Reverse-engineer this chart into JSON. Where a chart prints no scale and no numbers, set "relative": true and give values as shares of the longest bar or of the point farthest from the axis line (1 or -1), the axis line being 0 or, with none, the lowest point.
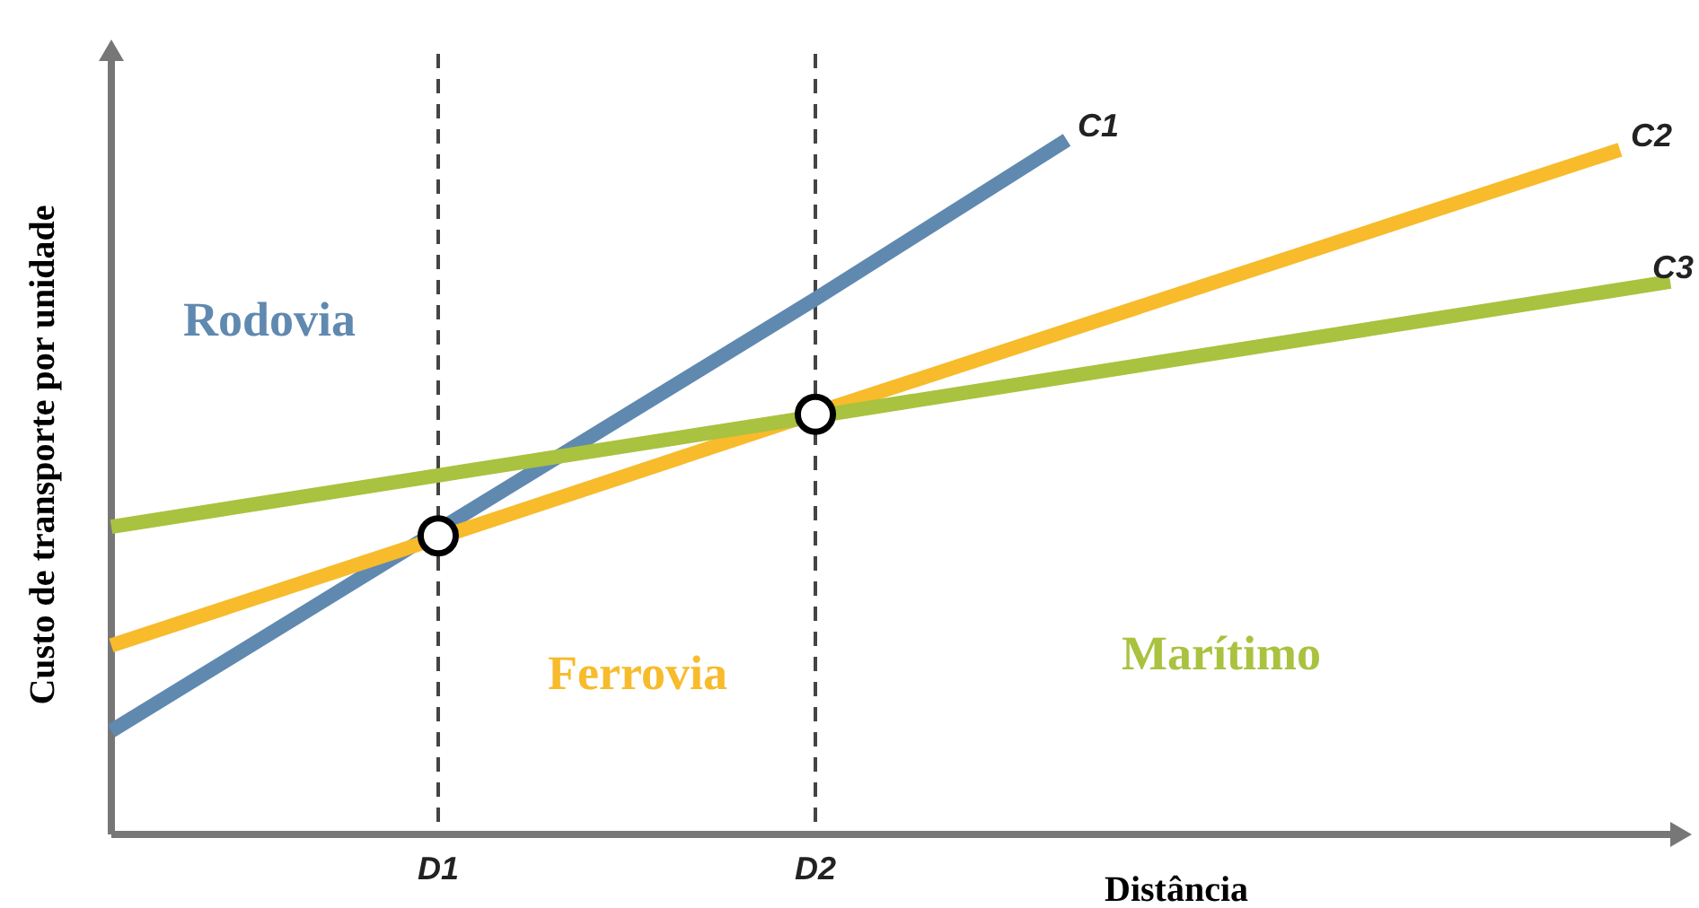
{
  "chart_data": {
    "type": "line",
    "relative": true,
    "xlabel": "Distância",
    "ylabel": "Custo de transporte por unidade",
    "categories": [
      null,
      null,
      null,
      null,
      null,
      null,
      null,
      null,
      null,
      null,
      null,
      null,
      null,
      "D1",
      null,
      null,
      null,
      null,
      null,
      null,
      null,
      null,
      null,
      null,
      null,
      null,
      null,
      null,
      "D2",
      null,
      null,
      null,
      null,
      null,
      null,
      null,
      null,
      null,
      null,
      null,
      null,
      null,
      null,
      null,
      null,
      null,
      null,
      null,
      null,
      null,
      null,
      null,
      null,
      null,
      null,
      null,
      null,
      null,
      null,
      null,
      null,
      null,
      null
    ],
    "series": [
      {
        "name": "C1",
        "color": "#6089b0",
        "values": [
          0.149,
          null,
          null,
          null,
          null,
          null,
          null,
          null,
          null,
          null,
          null,
          null,
          null,
          0.438,
          null,
          null,
          null,
          null,
          null,
          null,
          null,
          null,
          null,
          null,
          null,
          null,
          null,
          null,
          0.771,
          null,
          null,
          null,
          null,
          null,
          null,
          null,
          null,
          null,
          1,
          null,
          null,
          null,
          null,
          null,
          null,
          null,
          null,
          null,
          null,
          null,
          null,
          null,
          null,
          null,
          null,
          null,
          null,
          null,
          null,
          null,
          null,
          null,
          null
        ]
      },
      {
        "name": "C2",
        "color": "#f7bb2b",
        "values": [
          0.272,
          null,
          null,
          null,
          null,
          null,
          null,
          null,
          null,
          null,
          null,
          null,
          null,
          0.427,
          null,
          null,
          null,
          null,
          null,
          null,
          null,
          null,
          null,
          null,
          null,
          null,
          null,
          null,
          0.607,
          null,
          null,
          null,
          null,
          null,
          null,
          null,
          null,
          null,
          null,
          null,
          null,
          null,
          null,
          null,
          null,
          null,
          null,
          null,
          null,
          null,
          null,
          null,
          null,
          null,
          null,
          null,
          null,
          null,
          null,
          null,
          0.986,
          null,
          null
        ]
      },
      {
        "name": "C3",
        "color": "#a9c23f",
        "values": [
          0.443,
          null,
          null,
          null,
          null,
          null,
          null,
          null,
          null,
          null,
          null,
          null,
          null,
          0.517,
          null,
          null,
          null,
          null,
          null,
          null,
          null,
          null,
          null,
          null,
          null,
          null,
          null,
          null,
          0.602,
          null,
          null,
          null,
          null,
          null,
          null,
          null,
          null,
          null,
          null,
          null,
          null,
          null,
          null,
          null,
          null,
          null,
          null,
          null,
          null,
          null,
          null,
          null,
          null,
          null,
          null,
          null,
          null,
          null,
          null,
          null,
          null,
          null,
          0.796
        ]
      },
      {
        "type": "scatter",
        "marker": "circle",
        "color": "#ffffff",
        "values": [
          null,
          null,
          null,
          null,
          null,
          null,
          null,
          null,
          null,
          null,
          null,
          null,
          null,
          0.43,
          null,
          null,
          null,
          null,
          null,
          null,
          null,
          null,
          null,
          null,
          null,
          null,
          null,
          null,
          0.605,
          null,
          null,
          null,
          null,
          null,
          null,
          null,
          null,
          null,
          null,
          null,
          null,
          null,
          null,
          null,
          null,
          null,
          null,
          null,
          null,
          null,
          null,
          null,
          null,
          null,
          null,
          null,
          null,
          null,
          null,
          null,
          null,
          null,
          null
        ]
      }
    ],
    "annotations": [
      "Rodovia",
      "Ferrovia",
      "Marítimo"
    ],
    "grid": "x",
    "line_style": "solid"
  }
}
